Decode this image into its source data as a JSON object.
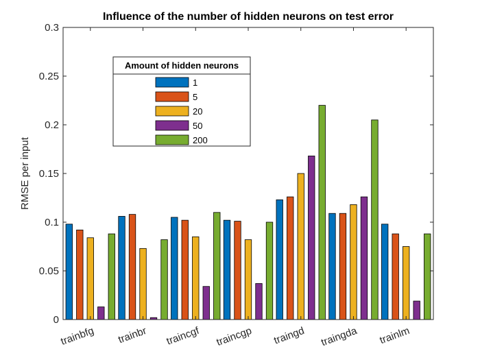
{
  "chart_data": {
    "type": "bar",
    "title": "Influence of the number of hidden neurons on test error",
    "xlabel": "",
    "ylabel": "RMSE per input",
    "ylim": [
      0,
      0.3
    ],
    "yticks": [
      "0",
      "0.05",
      "0.1",
      "0.15",
      "0.2",
      "0.25",
      "0.3"
    ],
    "categories": [
      "trainbfg",
      "trainbr",
      "traincgf",
      "traincgp",
      "traingd",
      "traingda",
      "trainlm"
    ],
    "legend_title": "Amount of hidden neurons",
    "legend_position": "upper-left",
    "grid": false,
    "series": [
      {
        "name": "1",
        "color": "#0072BD",
        "values": [
          0.098,
          0.106,
          0.105,
          0.102,
          0.123,
          0.109,
          0.098
        ]
      },
      {
        "name": "5",
        "color": "#D95319",
        "values": [
          0.092,
          0.108,
          0.102,
          0.101,
          0.126,
          0.109,
          0.088
        ]
      },
      {
        "name": "20",
        "color": "#EDB120",
        "values": [
          0.084,
          0.073,
          0.085,
          0.082,
          0.15,
          0.118,
          0.075
        ]
      },
      {
        "name": "50",
        "color": "#7E2F8E",
        "values": [
          0.013,
          0.002,
          0.034,
          0.037,
          0.168,
          0.126,
          0.019
        ]
      },
      {
        "name": "200",
        "color": "#77AC30",
        "values": [
          0.088,
          0.082,
          0.11,
          0.1,
          0.22,
          0.205,
          0.088
        ]
      }
    ]
  }
}
